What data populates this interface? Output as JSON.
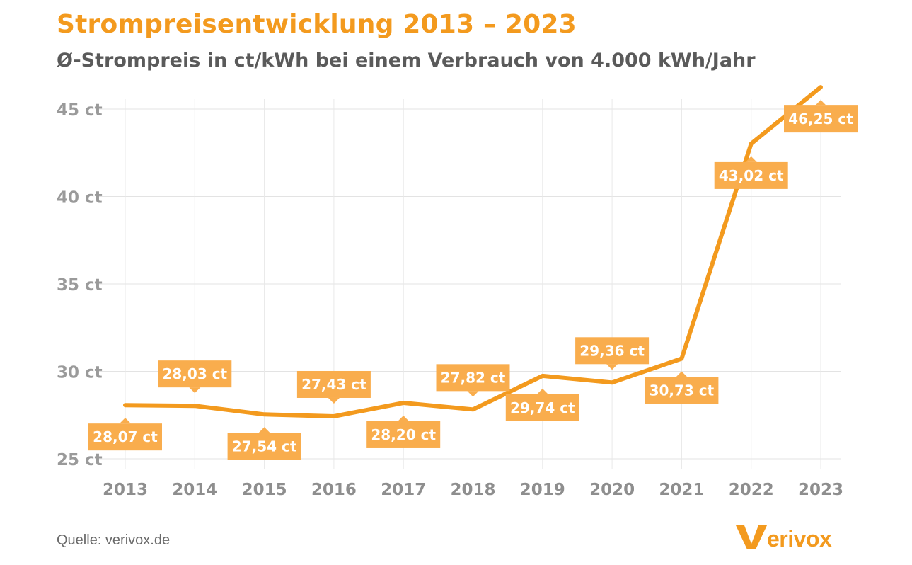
{
  "chart_data": {
    "type": "line",
    "title": "Strompreisentwicklung 2013 – 2023",
    "subtitle": "Ø-Strompreis in ct/kWh bei einem Verbrauch von 4.000 kWh/Jahr",
    "categories": [
      "2013",
      "2014",
      "2015",
      "2016",
      "2017",
      "2018",
      "2019",
      "2020",
      "2021",
      "2022",
      "2023"
    ],
    "values": [
      28.07,
      28.03,
      27.54,
      27.43,
      28.2,
      27.82,
      29.74,
      29.36,
      30.73,
      43.02,
      46.25
    ],
    "data_labels": [
      "28,07 ct",
      "28,03 ct",
      "27,54 ct",
      "27,43 ct",
      "28,20 ct",
      "27,82 ct",
      "29,74 ct",
      "29,36 ct",
      "30,73 ct",
      "43,02 ct",
      "46,25 ct"
    ],
    "label_position": [
      "below",
      "above",
      "below",
      "above",
      "below",
      "above",
      "below",
      "above",
      "below",
      "below",
      "below"
    ],
    "yticks": [
      25,
      30,
      35,
      40,
      45
    ],
    "ytick_labels": [
      "25 ct",
      "30 ct",
      "35 ct",
      "40 ct",
      "45 ct"
    ],
    "ylim": [
      25,
      45
    ],
    "grid": true,
    "line_color": "#f39a1e",
    "label_color": "#f9ad4d"
  },
  "footer": {
    "source": "Quelle: verivox.de",
    "logo_text": "verivox",
    "logo_color": "#f39a1e"
  }
}
